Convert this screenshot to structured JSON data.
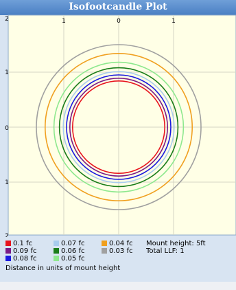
{
  "chart_data": {
    "type": "line",
    "title": "Isofootcandle Plot",
    "x_ticks_top": [
      "1",
      "0",
      "1"
    ],
    "y_ticks_left": [
      "2",
      "1",
      "0",
      "1",
      "2"
    ],
    "series": [
      {
        "name": "0.1 fc",
        "color": "#e8141e",
        "radius": 0.84
      },
      {
        "name": "0.09 fc",
        "color": "#7a1a86",
        "radius": 0.89
      },
      {
        "name": "0.08 fc",
        "color": "#1a1ae0",
        "radius": 0.95
      },
      {
        "name": "0.07 fc",
        "color": "#a8ccee",
        "radius": 1.01
      },
      {
        "name": "0.06 fc",
        "color": "#1a7d1a",
        "radius": 1.08
      },
      {
        "name": "0.05 fc",
        "color": "#8ee88e",
        "radius": 1.18
      },
      {
        "name": "0.04 fc",
        "color": "#f0a020",
        "radius": 1.34
      },
      {
        "name": "0.03 fc",
        "color": "#a0a0a0",
        "radius": 1.5
      }
    ],
    "mount_height_label": "Mount height: 5ft",
    "total_llf_label": "Total LLF: 1",
    "note": "Distance in units of mount height"
  }
}
